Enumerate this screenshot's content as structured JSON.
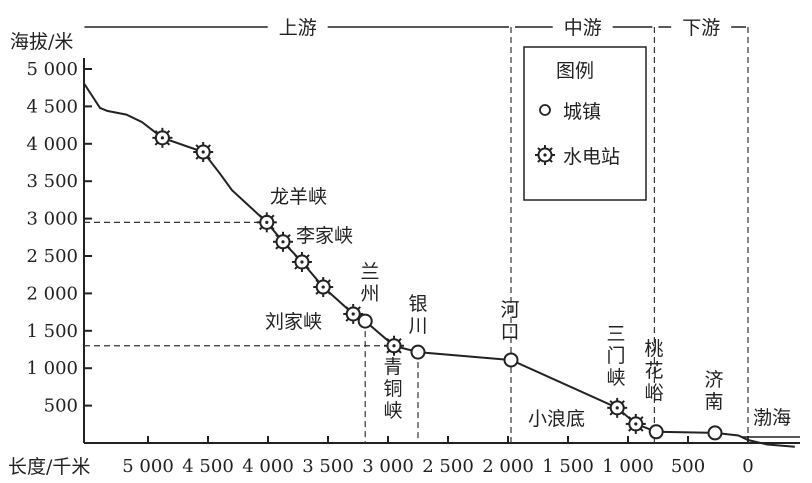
{
  "chart_data": {
    "type": "line",
    "ylabel": "海拔/米",
    "xlabel": "长度/千米",
    "x_ticks": [
      "5 000",
      "4 500",
      "4 000",
      "3 500",
      "3 000",
      "2 500",
      "2 000",
      "1 500",
      "1 000",
      "500",
      "0"
    ],
    "x_tick_values": [
      5000,
      4500,
      4000,
      3500,
      3000,
      2500,
      2000,
      1500,
      1000,
      500,
      0
    ],
    "y_ticks": [
      "5 000",
      "4 500",
      "4 000",
      "3 500",
      "3 000",
      "2 500",
      "2 000",
      "1 500",
      "1 000",
      "500"
    ],
    "y_tick_values": [
      5000,
      4500,
      4000,
      3500,
      3000,
      2500,
      2000,
      1500,
      1000,
      500
    ],
    "x_reversed": true,
    "profile": [
      [
        5530,
        4800
      ],
      [
        5400,
        4480
      ],
      [
        5340,
        4440
      ],
      [
        5180,
        4390
      ],
      [
        5050,
        4290
      ],
      [
        4880,
        4080
      ],
      [
        4540,
        3890
      ],
      [
        4400,
        3600
      ],
      [
        4300,
        3380
      ],
      [
        4010,
        2950
      ],
      [
        3875,
        2690
      ],
      [
        3717,
        2420
      ],
      [
        3540,
        2085
      ],
      [
        3290,
        1725
      ],
      [
        3190,
        1630
      ],
      [
        2950,
        1300
      ],
      [
        2750,
        1215
      ],
      [
        1975,
        1110
      ],
      [
        1090,
        470
      ],
      [
        935,
        255
      ],
      [
        765,
        150
      ],
      [
        275,
        135
      ],
      [
        80,
        100
      ],
      [
        0,
        40
      ],
      [
        -160,
        -20
      ],
      [
        -390,
        -50
      ]
    ],
    "sections": [
      {
        "label": "上游",
        "from": 5530,
        "to": 1975
      },
      {
        "label": "中游",
        "from": 1975,
        "to": 780
      },
      {
        "label": "下游",
        "from": 780,
        "to": 0
      }
    ],
    "towns": [
      {
        "name": "兰州",
        "km": 3190,
        "m": 1630
      },
      {
        "name": "银川",
        "km": 2750,
        "m": 1215
      },
      {
        "name": "河口",
        "km": 1975,
        "m": 1110
      },
      {
        "name": "桃花峪",
        "km": 765,
        "m": 150
      },
      {
        "name": "济南",
        "km": 275,
        "m": 135
      }
    ],
    "stations": [
      {
        "name": "",
        "km": 4880,
        "m": 4080
      },
      {
        "name": "",
        "km": 4540,
        "m": 3890
      },
      {
        "name": "龙羊峡",
        "km": 4010,
        "m": 2950
      },
      {
        "name": "李家峡",
        "km": 3875,
        "m": 2690
      },
      {
        "name": "",
        "km": 3717,
        "m": 2420
      },
      {
        "name": "",
        "km": 3540,
        "m": 2085
      },
      {
        "name": "刘家峡",
        "km": 3290,
        "m": 1725
      },
      {
        "name": "青铜峡",
        "km": 2950,
        "m": 1300
      },
      {
        "name": "三门峡",
        "km": 1090,
        "m": 470
      },
      {
        "name": "小浪底",
        "km": 935,
        "m": 255
      }
    ],
    "sea_label": "渤海",
    "legend": {
      "title": "图例",
      "town": "城镇",
      "station": "水电站",
      "placement": "top-right"
    }
  }
}
